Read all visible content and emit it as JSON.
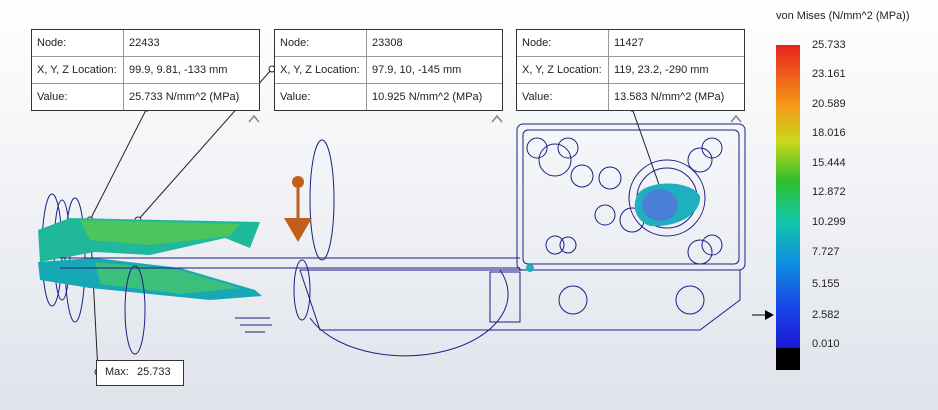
{
  "probes": [
    {
      "rows": [
        [
          "Node:",
          "22433"
        ],
        [
          "X, Y, Z Location:",
          "99.9, 9.81, -133 mm"
        ],
        [
          "Value:",
          "25.733 N/mm^2 (MPa)"
        ]
      ]
    },
    {
      "rows": [
        [
          "Node:",
          "23308"
        ],
        [
          "X, Y, Z Location:",
          "97.9, 10, -145 mm"
        ],
        [
          "Value:",
          "10.925 N/mm^2 (MPa)"
        ]
      ]
    },
    {
      "rows": [
        [
          "Node:",
          "11427"
        ],
        [
          "X, Y, Z Location:",
          "119, 23.2, -290 mm"
        ],
        [
          "Value:",
          "13.583 N/mm^2 (MPa)"
        ]
      ]
    }
  ],
  "legend": {
    "title": "von Mises (N/mm^2 (MPa))",
    "ticks": [
      "25.733",
      "23.161",
      "20.589",
      "18.016",
      "15.444",
      "12.872",
      "10.299",
      "7.727",
      "5.155",
      "2.582",
      "0.010"
    ]
  },
  "max": {
    "label": "Max:",
    "value": "25.733"
  },
  "colors": {
    "wire": "#1c1f86",
    "accent": "#e8231c"
  }
}
